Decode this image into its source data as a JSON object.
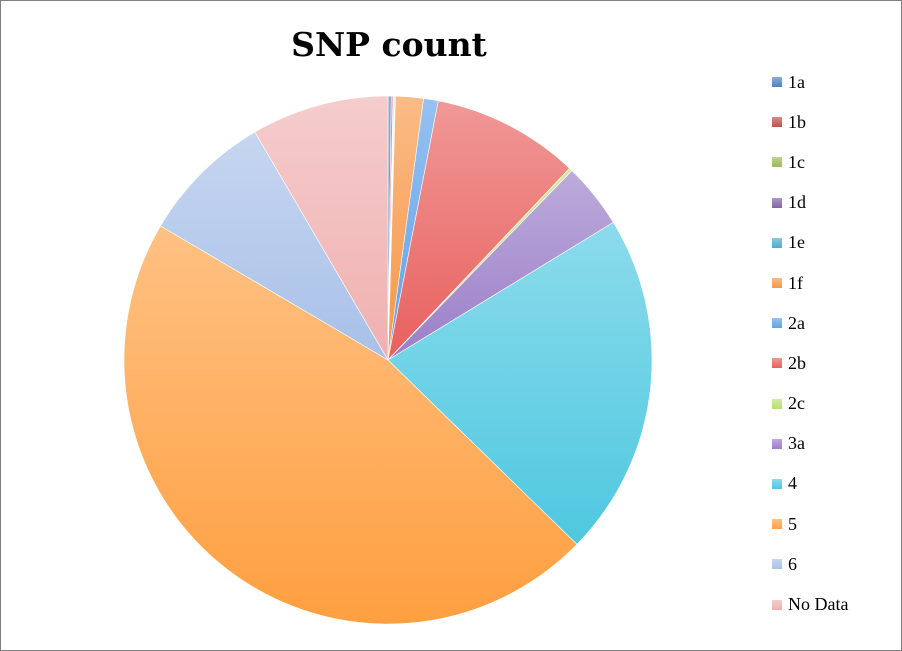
{
  "chart_data": {
    "type": "pie",
    "title": "SNP count",
    "legend_position": "right",
    "categories": [
      "1a",
      "1b",
      "1c",
      "1d",
      "1e",
      "1f",
      "2a",
      "2b",
      "2c",
      "3a",
      "4",
      "5",
      "6",
      "No Data"
    ],
    "values": [
      0.2,
      0.1,
      0.05,
      0.05,
      0.05,
      1.7,
      0.9,
      9.0,
      0.2,
      4.0,
      21.0,
      46.1,
      8.1,
      8.4
    ],
    "colors": [
      "#4f81bd",
      "#c0504d",
      "#9bbb59",
      "#8064a2",
      "#4bacc6",
      "#f79646",
      "#5fa0e8",
      "#e8605e",
      "#b8e070",
      "#9a7ec8",
      "#4ec8e0",
      "#ff9f40",
      "#a8c0e8",
      "#f0b0b0"
    ]
  }
}
